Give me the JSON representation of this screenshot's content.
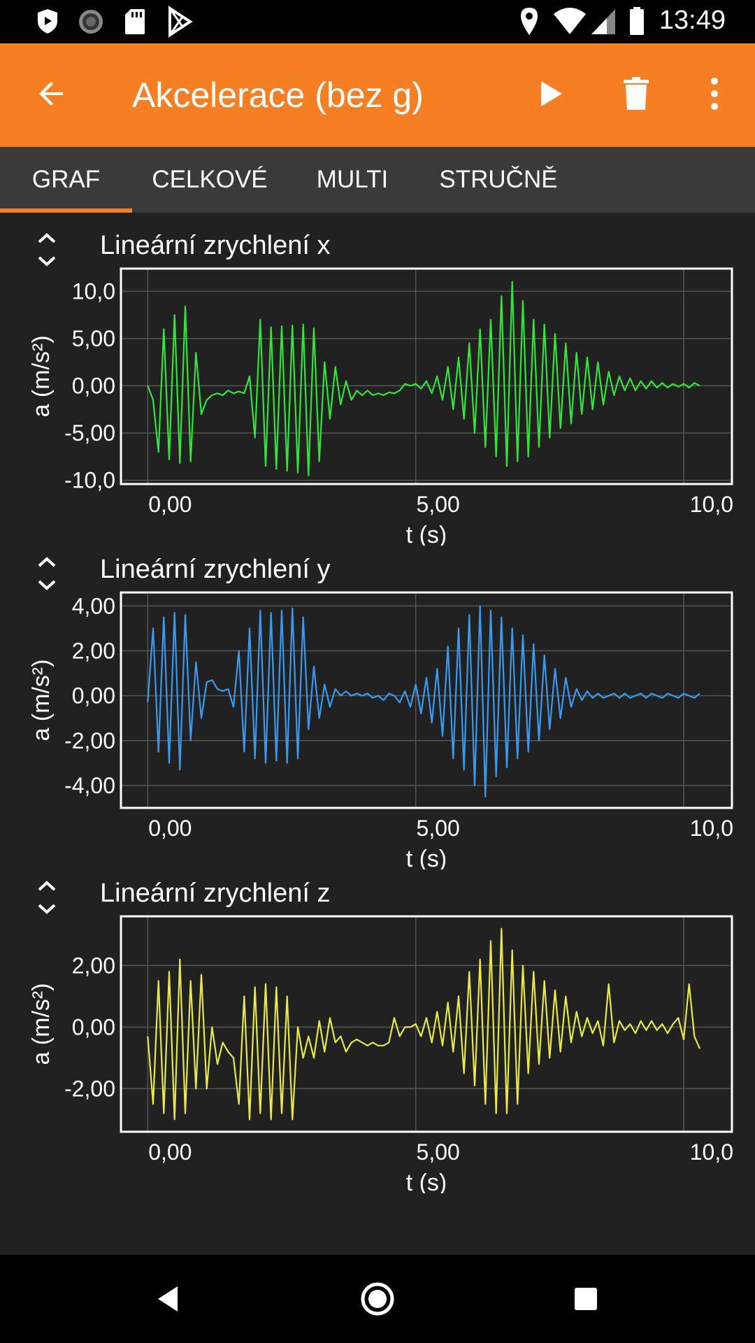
{
  "status_bar": {
    "time": "13:49",
    "left_icons": [
      "shield-play-icon",
      "sync-circle-icon",
      "sd-card-icon",
      "play-store-icon"
    ],
    "right_icons": [
      "location-icon",
      "wifi-icon",
      "signal-icon",
      "battery-icon"
    ]
  },
  "app_bar": {
    "title": "Akcelerace (bez g)",
    "back_icon": "arrow-back-icon",
    "play_icon": "play-icon",
    "delete_icon": "trash-icon",
    "menu_icon": "more-vert-icon",
    "color": "#f57f22"
  },
  "tabs": [
    {
      "label": "GRAF",
      "selected": true
    },
    {
      "label": "CELKOVÉ",
      "selected": false
    },
    {
      "label": "MULTI",
      "selected": false
    },
    {
      "label": "STRUČNĚ",
      "selected": false
    }
  ],
  "chart_data": [
    {
      "type": "line",
      "title": "Lineární zrychlení x",
      "xlabel": "t (s)",
      "ylabel": "a (m/s²)",
      "xlim": [
        -0.5,
        10.9
      ],
      "ylim": [
        -10.4,
        12.4
      ],
      "x_ticks": [
        "0,00",
        "5,00",
        "10,0"
      ],
      "x_tick_values": [
        0,
        5,
        10
      ],
      "y_ticks": [
        "10,0",
        "5,00",
        "0,00",
        "-5,00",
        "-10,0"
      ],
      "y_tick_values": [
        10,
        5,
        0,
        -5,
        -10
      ],
      "grid": true,
      "series": [
        {
          "color": "#32e53a",
          "x": [
            0,
            0.1,
            0.2,
            0.3,
            0.4,
            0.5,
            0.6,
            0.7,
            0.8,
            0.9,
            1.0,
            1.1,
            1.2,
            1.3,
            1.4,
            1.5,
            1.6,
            1.7,
            1.8,
            1.9,
            2.0,
            2.1,
            2.2,
            2.3,
            2.4,
            2.5,
            2.6,
            2.7,
            2.8,
            2.9,
            3.0,
            3.1,
            3.2,
            3.3,
            3.4,
            3.5,
            3.6,
            3.7,
            3.8,
            3.9,
            4.0,
            4.1,
            4.2,
            4.3,
            4.4,
            4.5,
            4.6,
            4.7,
            4.8,
            4.9,
            5.0,
            5.1,
            5.2,
            5.3,
            5.4,
            5.5,
            5.6,
            5.7,
            5.8,
            5.9,
            6.0,
            6.1,
            6.2,
            6.3,
            6.4,
            6.5,
            6.6,
            6.7,
            6.8,
            6.9,
            7.0,
            7.1,
            7.2,
            7.3,
            7.4,
            7.5,
            7.6,
            7.7,
            7.8,
            7.9,
            8.0,
            8.1,
            8.2,
            8.3,
            8.4,
            8.5,
            8.6,
            8.7,
            8.8,
            8.9,
            9.0,
            9.1,
            9.2,
            9.3,
            9.4,
            9.5,
            9.6,
            9.7,
            9.8,
            9.9,
            10.0,
            10.1,
            10.2,
            10.3
          ],
          "values": [
            0,
            -1.5,
            -7.0,
            6.0,
            -7.8,
            7.5,
            -8.2,
            8.4,
            -8.0,
            3.5,
            -3.0,
            -1.5,
            -1.0,
            -0.8,
            -1.0,
            -0.5,
            -0.8,
            -0.6,
            -0.8,
            1.0,
            -5.5,
            7.0,
            -8.5,
            6.2,
            -8.8,
            6.3,
            -9.0,
            6.4,
            -9.2,
            6.5,
            -9.5,
            6.1,
            -8.0,
            2.5,
            -3.5,
            2.0,
            -2.0,
            0.5,
            -1.5,
            -0.5,
            -1.0,
            -0.5,
            -1.0,
            -0.8,
            -1.0,
            -0.7,
            -0.8,
            -0.5,
            0.2,
            0.0,
            0.2,
            -0.3,
            0.5,
            -0.8,
            1.0,
            -1.5,
            2.0,
            -2.5,
            3.0,
            -3.5,
            4.5,
            -5.0,
            6.0,
            -6.5,
            7.0,
            -7.5,
            9.5,
            -8.5,
            11.0,
            -8.0,
            9.0,
            -7.5,
            7.0,
            -6.5,
            6.5,
            -5.5,
            5.5,
            -4.5,
            4.5,
            -4.0,
            3.5,
            -3.0,
            3.0,
            -2.5,
            2.5,
            -2.0,
            1.5,
            -1.0,
            1.0,
            -0.5,
            0.8,
            -0.5,
            0.5,
            -0.3,
            0.5,
            -0.2,
            0.3,
            -0.2,
            0.2,
            -0.1,
            0.2,
            -0.2,
            0.3,
            0.0
          ]
        }
      ]
    },
    {
      "type": "line",
      "title": "Lineární zrychlení y",
      "xlabel": "t (s)",
      "ylabel": "a (m/s²)",
      "xlim": [
        -0.5,
        10.9
      ],
      "ylim": [
        -5.0,
        4.6
      ],
      "x_ticks": [
        "0,00",
        "5,00",
        "10,0"
      ],
      "x_tick_values": [
        0,
        5,
        10
      ],
      "y_ticks": [
        "4,00",
        "2,00",
        "0,00",
        "-2,00",
        "-4,00"
      ],
      "y_tick_values": [
        4,
        2,
        0,
        -2,
        -4
      ],
      "grid": true,
      "series": [
        {
          "color": "#3a9af0",
          "x": [
            0,
            0.1,
            0.2,
            0.3,
            0.4,
            0.5,
            0.6,
            0.7,
            0.8,
            0.9,
            1.0,
            1.1,
            1.2,
            1.3,
            1.4,
            1.5,
            1.6,
            1.7,
            1.8,
            1.9,
            2.0,
            2.1,
            2.2,
            2.3,
            2.4,
            2.5,
            2.6,
            2.7,
            2.8,
            2.9,
            3.0,
            3.1,
            3.2,
            3.3,
            3.4,
            3.5,
            3.6,
            3.7,
            3.8,
            3.9,
            4.0,
            4.1,
            4.2,
            4.3,
            4.4,
            4.5,
            4.6,
            4.7,
            4.8,
            4.9,
            5.0,
            5.1,
            5.2,
            5.3,
            5.4,
            5.5,
            5.6,
            5.7,
            5.8,
            5.9,
            6.0,
            6.1,
            6.2,
            6.3,
            6.4,
            6.5,
            6.6,
            6.7,
            6.8,
            6.9,
            7.0,
            7.1,
            7.2,
            7.3,
            7.4,
            7.5,
            7.6,
            7.7,
            7.8,
            7.9,
            8.0,
            8.1,
            8.2,
            8.3,
            8.4,
            8.5,
            8.6,
            8.7,
            8.8,
            8.9,
            9.0,
            9.1,
            9.2,
            9.3,
            9.4,
            9.5,
            9.6,
            9.7,
            9.8,
            9.9,
            10.0,
            10.1,
            10.2,
            10.3
          ],
          "values": [
            -0.3,
            3.0,
            -2.5,
            3.5,
            -3.0,
            3.7,
            -3.3,
            3.6,
            -2.0,
            1.5,
            -1.0,
            0.6,
            0.7,
            0.3,
            0.2,
            0.3,
            -0.5,
            2.0,
            -2.5,
            3.0,
            -2.8,
            3.8,
            -3.0,
            3.7,
            -2.9,
            3.8,
            -3.0,
            3.9,
            -2.8,
            3.5,
            -1.5,
            1.3,
            -1.0,
            0.5,
            -0.5,
            0.3,
            0.0,
            0.2,
            0.0,
            0.1,
            0.0,
            0.1,
            -0.1,
            0.0,
            -0.2,
            0.1,
            0.0,
            -0.3,
            0.2,
            -0.5,
            0.5,
            -0.8,
            0.8,
            -1.2,
            1.2,
            -1.8,
            2.2,
            -2.8,
            3.0,
            -3.3,
            3.6,
            -4.0,
            4.0,
            -4.5,
            3.8,
            -3.6,
            3.5,
            -3.2,
            3.0,
            -2.8,
            2.7,
            -2.5,
            2.3,
            -2.0,
            1.8,
            -1.5,
            1.2,
            -1.0,
            0.8,
            -0.5,
            0.3,
            -0.2,
            0.2,
            -0.1,
            0.1,
            -0.1,
            0.0,
            0.1,
            -0.1,
            0.1,
            -0.1,
            0.0,
            0.1,
            -0.1,
            0.1,
            0.0,
            -0.1,
            0.1,
            0.0,
            -0.1,
            0.1,
            0.0,
            -0.1,
            0.1
          ]
        }
      ]
    },
    {
      "type": "line",
      "title": "Lineární zrychlení z",
      "xlabel": "t (s)",
      "ylabel": "a (m/s²)",
      "xlim": [
        -0.5,
        10.9
      ],
      "ylim": [
        -3.4,
        3.6
      ],
      "x_ticks": [
        "0,00",
        "5,00",
        "10,0"
      ],
      "x_tick_values": [
        0,
        5,
        10
      ],
      "y_ticks": [
        "2,00",
        "0,00",
        "-2,00"
      ],
      "y_tick_values": [
        2,
        0,
        -2
      ],
      "grid": true,
      "series": [
        {
          "color": "#e8e84a",
          "x": [
            0,
            0.1,
            0.2,
            0.3,
            0.4,
            0.5,
            0.6,
            0.7,
            0.8,
            0.9,
            1.0,
            1.1,
            1.2,
            1.3,
            1.4,
            1.5,
            1.6,
            1.7,
            1.8,
            1.9,
            2.0,
            2.1,
            2.2,
            2.3,
            2.4,
            2.5,
            2.6,
            2.7,
            2.8,
            2.9,
            3.0,
            3.1,
            3.2,
            3.3,
            3.4,
            3.5,
            3.6,
            3.7,
            3.8,
            3.9,
            4.0,
            4.1,
            4.2,
            4.3,
            4.4,
            4.5,
            4.6,
            4.7,
            4.8,
            4.9,
            5.0,
            5.1,
            5.2,
            5.3,
            5.4,
            5.5,
            5.6,
            5.7,
            5.8,
            5.9,
            6.0,
            6.1,
            6.2,
            6.3,
            6.4,
            6.5,
            6.6,
            6.7,
            6.8,
            6.9,
            7.0,
            7.1,
            7.2,
            7.3,
            7.4,
            7.5,
            7.6,
            7.7,
            7.8,
            7.9,
            8.0,
            8.1,
            8.2,
            8.3,
            8.4,
            8.5,
            8.6,
            8.7,
            8.8,
            8.9,
            9.0,
            9.1,
            9.2,
            9.3,
            9.4,
            9.5,
            9.6,
            9.7,
            9.8,
            9.9,
            10.0,
            10.1,
            10.2,
            10.3
          ],
          "values": [
            -0.3,
            -2.5,
            1.5,
            -2.8,
            1.8,
            -3.0,
            2.2,
            -2.8,
            1.5,
            -2.0,
            1.7,
            -2.0,
            0.0,
            -1.2,
            -0.5,
            -0.8,
            -1.0,
            -2.5,
            1.0,
            -3.0,
            1.3,
            -2.8,
            1.4,
            -3.0,
            1.3,
            -2.8,
            1.0,
            -3.0,
            0.0,
            -1.0,
            -0.3,
            -1.0,
            0.2,
            -0.8,
            0.3,
            -0.5,
            -0.3,
            -0.8,
            -0.5,
            -0.4,
            -0.5,
            -0.6,
            -0.5,
            -0.6,
            -0.6,
            -0.5,
            0.3,
            -0.3,
            0.0,
            0.0,
            0.1,
            -0.3,
            0.3,
            -0.5,
            0.5,
            -0.6,
            0.8,
            -0.8,
            1.0,
            -1.5,
            1.8,
            -1.9,
            2.2,
            -2.5,
            2.8,
            -2.8,
            3.2,
            -2.8,
            2.5,
            -2.5,
            2.0,
            -1.5,
            1.8,
            -1.2,
            1.5,
            -1.0,
            1.2,
            -0.8,
            1.0,
            -0.5,
            0.5,
            -0.3,
            0.3,
            -0.2,
            0.2,
            -0.6,
            1.4,
            -0.5,
            0.2,
            -0.1,
            0.1,
            -0.2,
            0.2,
            -0.1,
            0.2,
            -0.1,
            0.1,
            -0.2,
            0.1,
            0.3,
            -0.4,
            1.4,
            -0.3,
            -0.7
          ]
        }
      ]
    }
  ],
  "nav_bar": {
    "back_icon": "nav-back-icon",
    "home_icon": "nav-home-icon",
    "recents_icon": "nav-recents-icon"
  }
}
